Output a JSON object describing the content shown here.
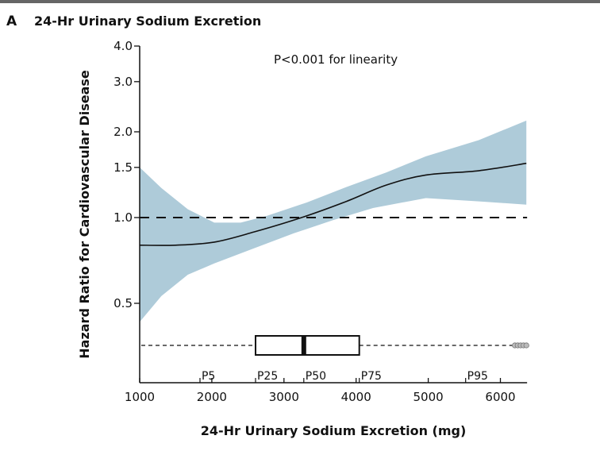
{
  "panel_letter": "A",
  "title": "24-Hr Urinary Sodium Excretion",
  "annotation": "P<0.001 for linearity",
  "colors": {
    "band": "#aecbd9",
    "line": "#111111"
  },
  "chart_data": {
    "type": "line",
    "title": "24-Hr Urinary Sodium Excretion",
    "xlabel": "24-Hr Urinary Sodium Excretion (mg)",
    "ylabel": "Hazard Ratio for Cardiovascular Disease",
    "xlim": [
      1000,
      6370
    ],
    "ylim": [
      0.36,
      4.0
    ],
    "yscale": "log",
    "xticks": [
      1000,
      2000,
      3000,
      4000,
      5000,
      6000
    ],
    "xtick_labels": [
      "1000",
      "2000",
      "3000",
      "4000",
      "5000",
      "6000"
    ],
    "yticks": [
      0.5,
      1.0,
      1.5,
      2.0,
      3.0,
      4.0
    ],
    "ytick_labels": [
      "0.5",
      "1.0",
      "1.5",
      "2.0",
      "3.0",
      "4.0"
    ],
    "grid": false,
    "reference_line": 1.0,
    "hazard_ratio": {
      "x": [
        1000,
        1500,
        2034,
        2584,
        3244,
        3867,
        4417,
        4967,
        5700,
        6360
      ],
      "y": [
        0.8,
        0.8,
        0.82,
        0.89,
        1.0,
        1.14,
        1.3,
        1.41,
        1.46,
        1.55
      ]
    },
    "ci_upper": {
      "x": [
        1000,
        1300,
        1667,
        2034,
        2400,
        2767,
        3317,
        3867,
        4417,
        4967,
        5700,
        6360
      ],
      "y": [
        1.5,
        1.27,
        1.07,
        0.96,
        0.96,
        1.015,
        1.13,
        1.28,
        1.44,
        1.64,
        1.87,
        2.19
      ]
    },
    "ci_lower": {
      "x": [
        1000,
        1300,
        1667,
        2034,
        2584,
        3134,
        3684,
        4234,
        4967,
        5700,
        6360
      ],
      "y": [
        0.43,
        0.53,
        0.63,
        0.69,
        0.78,
        0.88,
        0.98,
        1.08,
        1.17,
        1.14,
        1.11
      ]
    },
    "distribution_boxplot": {
      "whisker_low": 1000,
      "q1": 2606,
      "median": 3275,
      "q3": 4044,
      "whisker_high": 6180,
      "outliers": [
        6200,
        6240,
        6280,
        6320,
        6360
      ]
    },
    "percentiles": [
      {
        "label": "P5",
        "value": 1836
      },
      {
        "label": "P25",
        "value": 2606
      },
      {
        "label": "P50",
        "value": 3275
      },
      {
        "label": "P75",
        "value": 4044
      },
      {
        "label": "P95",
        "value": 5518
      }
    ]
  }
}
